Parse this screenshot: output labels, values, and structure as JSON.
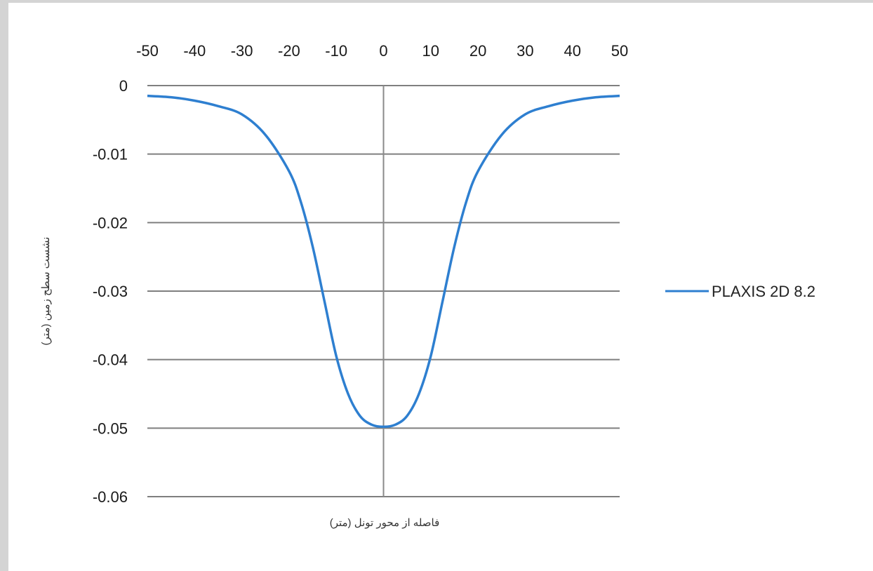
{
  "chart_data": {
    "type": "line",
    "title": "",
    "xlabel": "فاصله از محور تونل (متر)",
    "ylabel": "نشست سطح زمین (متر)",
    "xlim": [
      -50,
      50
    ],
    "ylim": [
      -0.06,
      0
    ],
    "x_ticks": [
      -50,
      -40,
      -30,
      -20,
      -10,
      0,
      10,
      20,
      30,
      40,
      50
    ],
    "x_tick_labels": [
      "-50",
      "-40",
      "-30",
      "-20",
      "-10",
      "0",
      "10",
      "20",
      "30",
      "40",
      "50"
    ],
    "y_ticks": [
      0,
      -0.01,
      -0.02,
      -0.03,
      -0.04,
      -0.05,
      -0.06
    ],
    "y_tick_labels": [
      "0",
      "-0.01",
      "-0.02",
      "-0.03",
      "-0.04",
      "-0.05",
      "-0.06"
    ],
    "x_axis_position": "top",
    "grid": "horizontal",
    "legend_position": "right",
    "series": [
      {
        "name": "PLAXIS 2D 8.2",
        "color": "#2e7fd0",
        "x": [
          -50,
          -45,
          -40,
          -35,
          -30,
          -25,
          -20,
          -17.5,
          -15,
          -12.5,
          -10,
          -7.5,
          -5,
          -2.5,
          0,
          2.5,
          5,
          7.5,
          10,
          12.5,
          15,
          17.5,
          20,
          25,
          30,
          35,
          40,
          45,
          50
        ],
        "y": [
          -0.0015,
          -0.0017,
          -0.0022,
          -0.003,
          -0.0042,
          -0.0072,
          -0.0125,
          -0.017,
          -0.0235,
          -0.0315,
          -0.0395,
          -0.045,
          -0.0482,
          -0.0495,
          -0.0498,
          -0.0495,
          -0.0482,
          -0.045,
          -0.0395,
          -0.0315,
          -0.0235,
          -0.017,
          -0.0125,
          -0.0072,
          -0.0042,
          -0.003,
          -0.0022,
          -0.0017,
          -0.0015
        ]
      }
    ]
  }
}
